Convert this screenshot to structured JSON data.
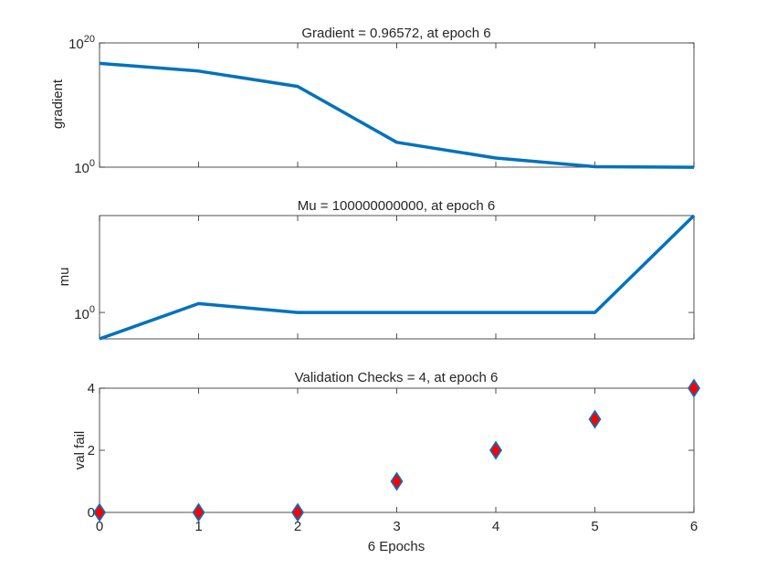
{
  "chart_data": [
    {
      "type": "line",
      "title": "Gradient = 0.96572, at epoch 6",
      "ylabel": "gradient",
      "xlabel": "",
      "yscale": "log",
      "ylim": [
        1,
        1e+20
      ],
      "xlim": [
        0,
        6
      ],
      "y_ticks": [
        {
          "base": "10",
          "exp": "0",
          "value": 1
        },
        {
          "base": "10",
          "exp": "20",
          "value": 1e+20
        }
      ],
      "x": [
        0,
        1,
        2,
        3,
        4,
        5,
        6
      ],
      "series": [
        {
          "values": [
            5e+16,
            3000000000000000.0,
            10000000000000.0,
            10000.0,
            30.0,
            1.2,
            0.96572
          ]
        }
      ],
      "line_color": "#0072BD",
      "grid": false
    },
    {
      "type": "line",
      "title": "Mu = 100000000000, at epoch 6",
      "ylabel": "mu",
      "xlabel": "",
      "yscale": "log",
      "ylim": [
        0.001,
        100000000000.0
      ],
      "xlim": [
        0,
        6
      ],
      "y_ticks": [
        {
          "base": "10",
          "exp": "0",
          "value": 1
        }
      ],
      "x": [
        0,
        1,
        2,
        3,
        4,
        5,
        6
      ],
      "series": [
        {
          "values": [
            0.001,
            10,
            1,
            1,
            1,
            1,
            100000000000
          ]
        }
      ],
      "line_color": "#0072BD",
      "grid": false
    },
    {
      "type": "scatter",
      "title": "Validation Checks = 4, at epoch 6",
      "ylabel": "val fail",
      "xlabel": "6 Epochs",
      "yscale": "linear",
      "ylim": [
        0,
        4
      ],
      "xlim": [
        0,
        6
      ],
      "y_ticks": [
        {
          "label": "0",
          "value": 0
        },
        {
          "label": "2",
          "value": 2
        },
        {
          "label": "4",
          "value": 4
        }
      ],
      "x_tick_labels": [
        "0",
        "1",
        "2",
        "3",
        "4",
        "5",
        "6"
      ],
      "x": [
        0,
        1,
        2,
        3,
        4,
        5,
        6
      ],
      "series": [
        {
          "values": [
            0,
            0,
            0,
            1,
            2,
            3,
            4
          ]
        }
      ],
      "marker": "diamond",
      "marker_fill": "#FF0000",
      "marker_edge": "#0072BD",
      "grid": false
    }
  ]
}
